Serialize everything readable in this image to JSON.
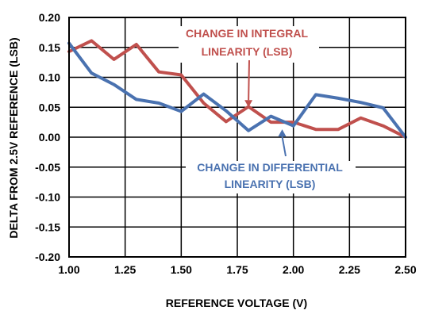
{
  "chart_data": {
    "type": "line",
    "xlabel": "REFERENCE VOLTAGE (V)",
    "ylabel": "DELTA FROM 2.5V REFERENCE (LSB)",
    "xlim": [
      1.0,
      2.5
    ],
    "ylim": [
      -0.2,
      0.2
    ],
    "grid": true,
    "x_ticks": [
      "1.00",
      "1.25",
      "1.50",
      "1.75",
      "2.00",
      "2.25",
      "2.50"
    ],
    "y_ticks": [
      "0.20",
      "0.15",
      "0.10",
      "0.05",
      "0.00",
      "-0.05",
      "-0.10",
      "-0.15",
      "-0.20"
    ],
    "x": [
      1.0,
      1.1,
      1.2,
      1.3,
      1.4,
      1.5,
      1.6,
      1.7,
      1.8,
      1.9,
      2.0,
      2.1,
      2.2,
      2.3,
      2.4,
      2.5
    ],
    "series": [
      {
        "name": "CHANGE IN INTEGRAL LINEARITY (LSB)",
        "color": "#c0504d",
        "values": [
          0.143,
          0.161,
          0.13,
          0.155,
          0.109,
          0.104,
          0.057,
          0.026,
          0.051,
          0.025,
          0.025,
          0.013,
          0.013,
          0.032,
          0.019,
          0.0
        ]
      },
      {
        "name": "CHANGE IN DIFFERENTIAL LINEARITY (LSB)",
        "color": "#4a72b0",
        "values": [
          0.157,
          0.107,
          0.088,
          0.063,
          0.057,
          0.043,
          0.072,
          0.044,
          0.011,
          0.035,
          0.019,
          0.071,
          0.065,
          0.058,
          0.049,
          0.0
        ]
      }
    ],
    "annotations": [
      {
        "lines": [
          "CHANGE IN INTEGRAL",
          "LINEARITY (LSB)"
        ],
        "color": "#c0504d",
        "arrow_to": [
          1.8,
          0.05
        ]
      },
      {
        "lines": [
          "CHANGE IN DIFFERENTIAL",
          "LINEARITY (LSB)"
        ],
        "color": "#4a72b0",
        "arrow_to": [
          1.95,
          0.013
        ]
      }
    ]
  }
}
